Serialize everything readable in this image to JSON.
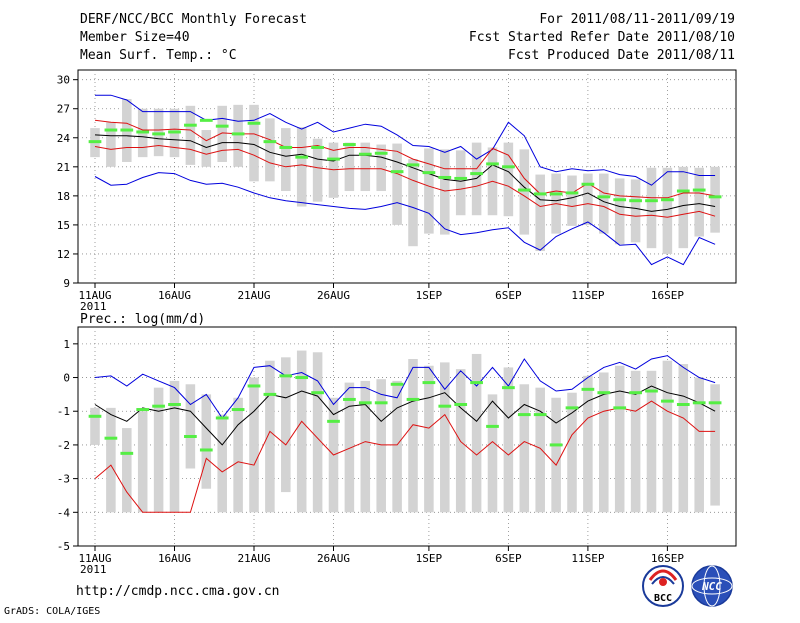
{
  "header": {
    "title": "DERF/NCC/BCC Monthly Forecast",
    "member_size": "Member Size=40",
    "variable": "Mean Surf. Temp.: °C",
    "period": "For 2011/08/11-2011/09/19",
    "fcst_started": "Fcst Started Refer Date 2011/08/10",
    "fcst_produced": "Fcst Produced Date 2011/08/11"
  },
  "colors": {
    "box": "#d3d3d3",
    "median": "#55ee44",
    "mean": "#000000",
    "quartile": "#dd1111",
    "extreme": "#0000dd"
  },
  "chart_data": [
    {
      "type": "line",
      "title": "Mean Surf. Temp.: °C",
      "x_labels": [
        "11AUG",
        "16AUG",
        "21AUG",
        "26AUG",
        "1SEP",
        "6SEP",
        "11SEP",
        "16SEP"
      ],
      "x_label_days": [
        0,
        5,
        10,
        15,
        21,
        26,
        31,
        36
      ],
      "x_year_label": "2011",
      "n_days": 40,
      "ylim": [
        9,
        31
      ],
      "y_ticks": [
        9,
        12,
        15,
        18,
        21,
        24,
        27,
        30
      ],
      "series": [
        {
          "name": "max",
          "values": [
            28.4,
            28.4,
            27.9,
            26.7,
            26.7,
            26.7,
            26.7,
            25.8,
            26.0,
            25.7,
            25.8,
            26.5,
            25.6,
            24.9,
            25.6,
            24.6,
            25.0,
            25.4,
            25.2,
            24.3,
            23.2,
            23.1,
            22.5,
            23.1,
            21.8,
            22.8,
            25.6,
            24.2,
            21.0,
            20.5,
            20.8,
            20.6,
            20.7,
            20.2,
            20.0,
            19.1,
            20.5,
            20.5,
            20.1,
            20.1
          ]
        },
        {
          "name": "upper_quartile",
          "values": [
            25.8,
            25.6,
            25.5,
            24.8,
            24.8,
            24.9,
            24.8,
            23.7,
            24.5,
            24.4,
            24.4,
            23.8,
            23.0,
            23.0,
            23.2,
            22.7,
            23.0,
            23.0,
            22.8,
            22.6,
            21.8,
            21.3,
            20.8,
            20.8,
            20.8,
            22.9,
            22.2,
            19.8,
            18.2,
            18.5,
            18.3,
            19.3,
            18.3,
            18.0,
            17.9,
            17.8,
            17.8,
            18.3,
            18.3,
            18.0
          ]
        },
        {
          "name": "mean",
          "values": [
            24.3,
            24.2,
            24.2,
            24.1,
            23.9,
            23.8,
            23.7,
            23.0,
            23.5,
            23.5,
            23.3,
            22.5,
            22.1,
            22.3,
            21.8,
            21.6,
            22.2,
            22.2,
            22.0,
            21.5,
            20.9,
            20.3,
            19.7,
            19.5,
            19.8,
            21.2,
            20.5,
            18.9,
            17.6,
            17.5,
            17.8,
            18.3,
            17.4,
            16.9,
            16.7,
            16.4,
            16.6,
            17.0,
            17.2,
            16.9
          ]
        },
        {
          "name": "lower_quartile",
          "values": [
            23.1,
            22.8,
            23.0,
            23.0,
            23.2,
            23.0,
            22.8,
            22.3,
            22.7,
            22.8,
            22.2,
            21.4,
            21.0,
            21.2,
            20.9,
            20.7,
            20.8,
            20.8,
            20.8,
            20.3,
            19.6,
            19.0,
            18.5,
            18.7,
            19.0,
            19.5,
            19.0,
            18.0,
            16.9,
            17.2,
            16.9,
            17.2,
            16.9,
            16.1,
            15.9,
            16.0,
            15.8,
            16.1,
            16.4,
            15.9
          ]
        },
        {
          "name": "min",
          "values": [
            20.0,
            19.1,
            19.2,
            19.9,
            20.4,
            20.3,
            19.6,
            19.2,
            19.3,
            18.9,
            18.3,
            17.8,
            17.5,
            17.3,
            17.1,
            16.9,
            16.7,
            16.6,
            16.9,
            17.3,
            16.8,
            16.2,
            14.6,
            14.0,
            14.2,
            14.5,
            14.7,
            13.2,
            12.4,
            13.8,
            14.6,
            15.3,
            14.2,
            12.9,
            13.0,
            10.9,
            11.7,
            10.9,
            13.7,
            13.0
          ]
        },
        {
          "name": "median",
          "values": [
            23.6,
            24.8,
            24.8,
            24.6,
            24.4,
            24.6,
            25.3,
            25.8,
            25.2,
            24.4,
            25.5,
            23.6,
            23.0,
            22.0,
            23.0,
            21.8,
            23.3,
            22.3,
            22.4,
            20.5,
            21.2,
            20.4,
            19.9,
            19.8,
            20.3,
            21.3,
            21.0,
            18.6,
            18.2,
            18.2,
            18.3,
            19.2,
            17.9,
            17.6,
            17.5,
            17.5,
            17.6,
            18.5,
            18.6,
            17.9
          ]
        },
        {
          "name": "box_top",
          "values": [
            25.0,
            25.6,
            28.0,
            27.0,
            27.0,
            27.0,
            27.3,
            24.8,
            27.3,
            27.4,
            27.4,
            26.0,
            25.0,
            25.1,
            23.9,
            23.5,
            23.5,
            23.5,
            23.3,
            23.4,
            21.8,
            22.9,
            22.8,
            22.7,
            23.5,
            23.0,
            23.5,
            22.8,
            20.2,
            20.3,
            20.1,
            20.3,
            20.3,
            19.8,
            19.7,
            20.9,
            20.9,
            21.0,
            20.9,
            21.0
          ]
        },
        {
          "name": "box_bottom",
          "values": [
            22.0,
            21.0,
            21.5,
            22.0,
            22.1,
            22.0,
            21.2,
            21.0,
            21.5,
            21.0,
            19.5,
            19.5,
            18.5,
            16.9,
            17.4,
            17.8,
            18.5,
            18.5,
            18.5,
            15.0,
            12.8,
            14.1,
            14.0,
            16.0,
            16.0,
            16.0,
            15.9,
            14.0,
            12.3,
            14.1,
            14.9,
            15.0,
            14.1,
            13.0,
            13.2,
            12.6,
            12.0,
            12.6,
            13.8,
            14.2
          ]
        }
      ]
    },
    {
      "type": "line",
      "title": "Prec.: log(mm/d)",
      "x_labels": [
        "11AUG",
        "16AUG",
        "21AUG",
        "26AUG",
        "1SEP",
        "6SEP",
        "11SEP",
        "16SEP"
      ],
      "x_label_days": [
        0,
        5,
        10,
        15,
        21,
        26,
        31,
        36
      ],
      "x_year_label": "2011",
      "n_days": 40,
      "ylim": [
        -5,
        1.5
      ],
      "y_ticks": [
        -5,
        -4,
        -3,
        -2,
        -1,
        0,
        1
      ],
      "series": [
        {
          "name": "max",
          "values": [
            0.0,
            0.05,
            -0.25,
            0.1,
            -0.1,
            -0.3,
            -0.8,
            -0.5,
            -1.2,
            -0.6,
            0.3,
            0.35,
            0.05,
            0.15,
            -0.1,
            -0.8,
            -0.3,
            -0.3,
            -0.5,
            -0.6,
            0.3,
            0.3,
            -0.35,
            0.2,
            -0.25,
            0.3,
            -0.25,
            0.55,
            -0.1,
            -0.4,
            -0.35,
            0.0,
            0.3,
            0.45,
            0.25,
            0.55,
            0.65,
            0.3,
            0.0,
            -0.15
          ]
        },
        {
          "name": "mean",
          "values": [
            -0.8,
            -1.1,
            -1.3,
            -0.9,
            -1.0,
            -0.9,
            -1.0,
            -1.5,
            -2.0,
            -1.4,
            -1.0,
            -0.5,
            -0.6,
            -0.4,
            -0.55,
            -1.1,
            -0.85,
            -0.8,
            -1.3,
            -0.9,
            -0.7,
            -0.6,
            -0.45,
            -0.9,
            -1.3,
            -0.7,
            -1.2,
            -0.8,
            -1.0,
            -1.35,
            -1.05,
            -0.7,
            -0.5,
            -0.4,
            -0.5,
            -0.25,
            -0.45,
            -0.55,
            -0.75,
            -1.0
          ]
        },
        {
          "name": "upper_quartile",
          "values": [
            -3.0,
            -2.6,
            -3.4,
            -4.0,
            -4.0,
            -4.0,
            -4.0,
            -2.4,
            -2.8,
            -2.5,
            -2.6,
            -1.6,
            -2.0,
            -1.3,
            -1.8,
            -2.3,
            -2.1,
            -1.9,
            -2.0,
            -2.0,
            -1.4,
            -1.5,
            -1.1,
            -1.9,
            -2.3,
            -1.9,
            -2.3,
            -1.9,
            -2.1,
            -2.6,
            -1.7,
            -1.2,
            -1.0,
            -0.9,
            -1.0,
            -0.7,
            -1.0,
            -1.2,
            -1.6,
            -1.6
          ]
        },
        {
          "name": "median",
          "values": [
            -1.15,
            -1.8,
            -2.25,
            -0.95,
            -0.85,
            -0.8,
            -1.75,
            -2.15,
            -1.2,
            -0.95,
            -0.25,
            -0.5,
            0.05,
            0.0,
            -0.45,
            -1.3,
            -0.65,
            -0.75,
            -0.75,
            -0.2,
            -0.65,
            -0.15,
            -0.85,
            -0.8,
            -0.15,
            -1.45,
            -0.3,
            -1.1,
            -1.1,
            -2.0,
            -0.9,
            -0.35,
            -0.45,
            -0.9,
            -0.45,
            -0.4,
            -0.7,
            -0.8,
            -0.75,
            -0.75
          ]
        },
        {
          "name": "box_top",
          "values": [
            -0.9,
            -0.9,
            -1.5,
            -1.0,
            -0.3,
            -0.1,
            -0.2,
            -0.5,
            -1.1,
            -0.6,
            0.0,
            0.5,
            0.6,
            0.8,
            0.75,
            -0.6,
            -0.15,
            -0.1,
            -0.05,
            -0.1,
            0.55,
            0.35,
            0.45,
            0.25,
            0.7,
            -0.5,
            0.3,
            -0.2,
            -0.3,
            -0.6,
            -0.45,
            0.05,
            0.15,
            0.35,
            0.2,
            0.2,
            0.5,
            0.4,
            0.0,
            -0.2
          ]
        },
        {
          "name": "box_bottom",
          "values": [
            -2.0,
            -4.0,
            -4.0,
            -4.0,
            -4.0,
            -4.0,
            -2.7,
            -3.3,
            -4.0,
            -4.0,
            -4.0,
            -4.0,
            -3.4,
            -4.0,
            -4.0,
            -4.0,
            -4.0,
            -4.0,
            -4.0,
            -4.0,
            -4.0,
            -4.0,
            -4.0,
            -4.0,
            -4.0,
            -4.0,
            -4.0,
            -4.0,
            -4.0,
            -4.0,
            -4.0,
            -4.0,
            -4.0,
            -4.0,
            -4.0,
            -4.0,
            -4.0,
            -4.0,
            -4.0,
            -3.8
          ]
        }
      ]
    }
  ],
  "footer": {
    "url": "http://cmdp.ncc.cma.gov.cn",
    "credit": "GrADS: COLA/IGES",
    "logo1_text": "BCC",
    "logo2_text": "NCC"
  }
}
